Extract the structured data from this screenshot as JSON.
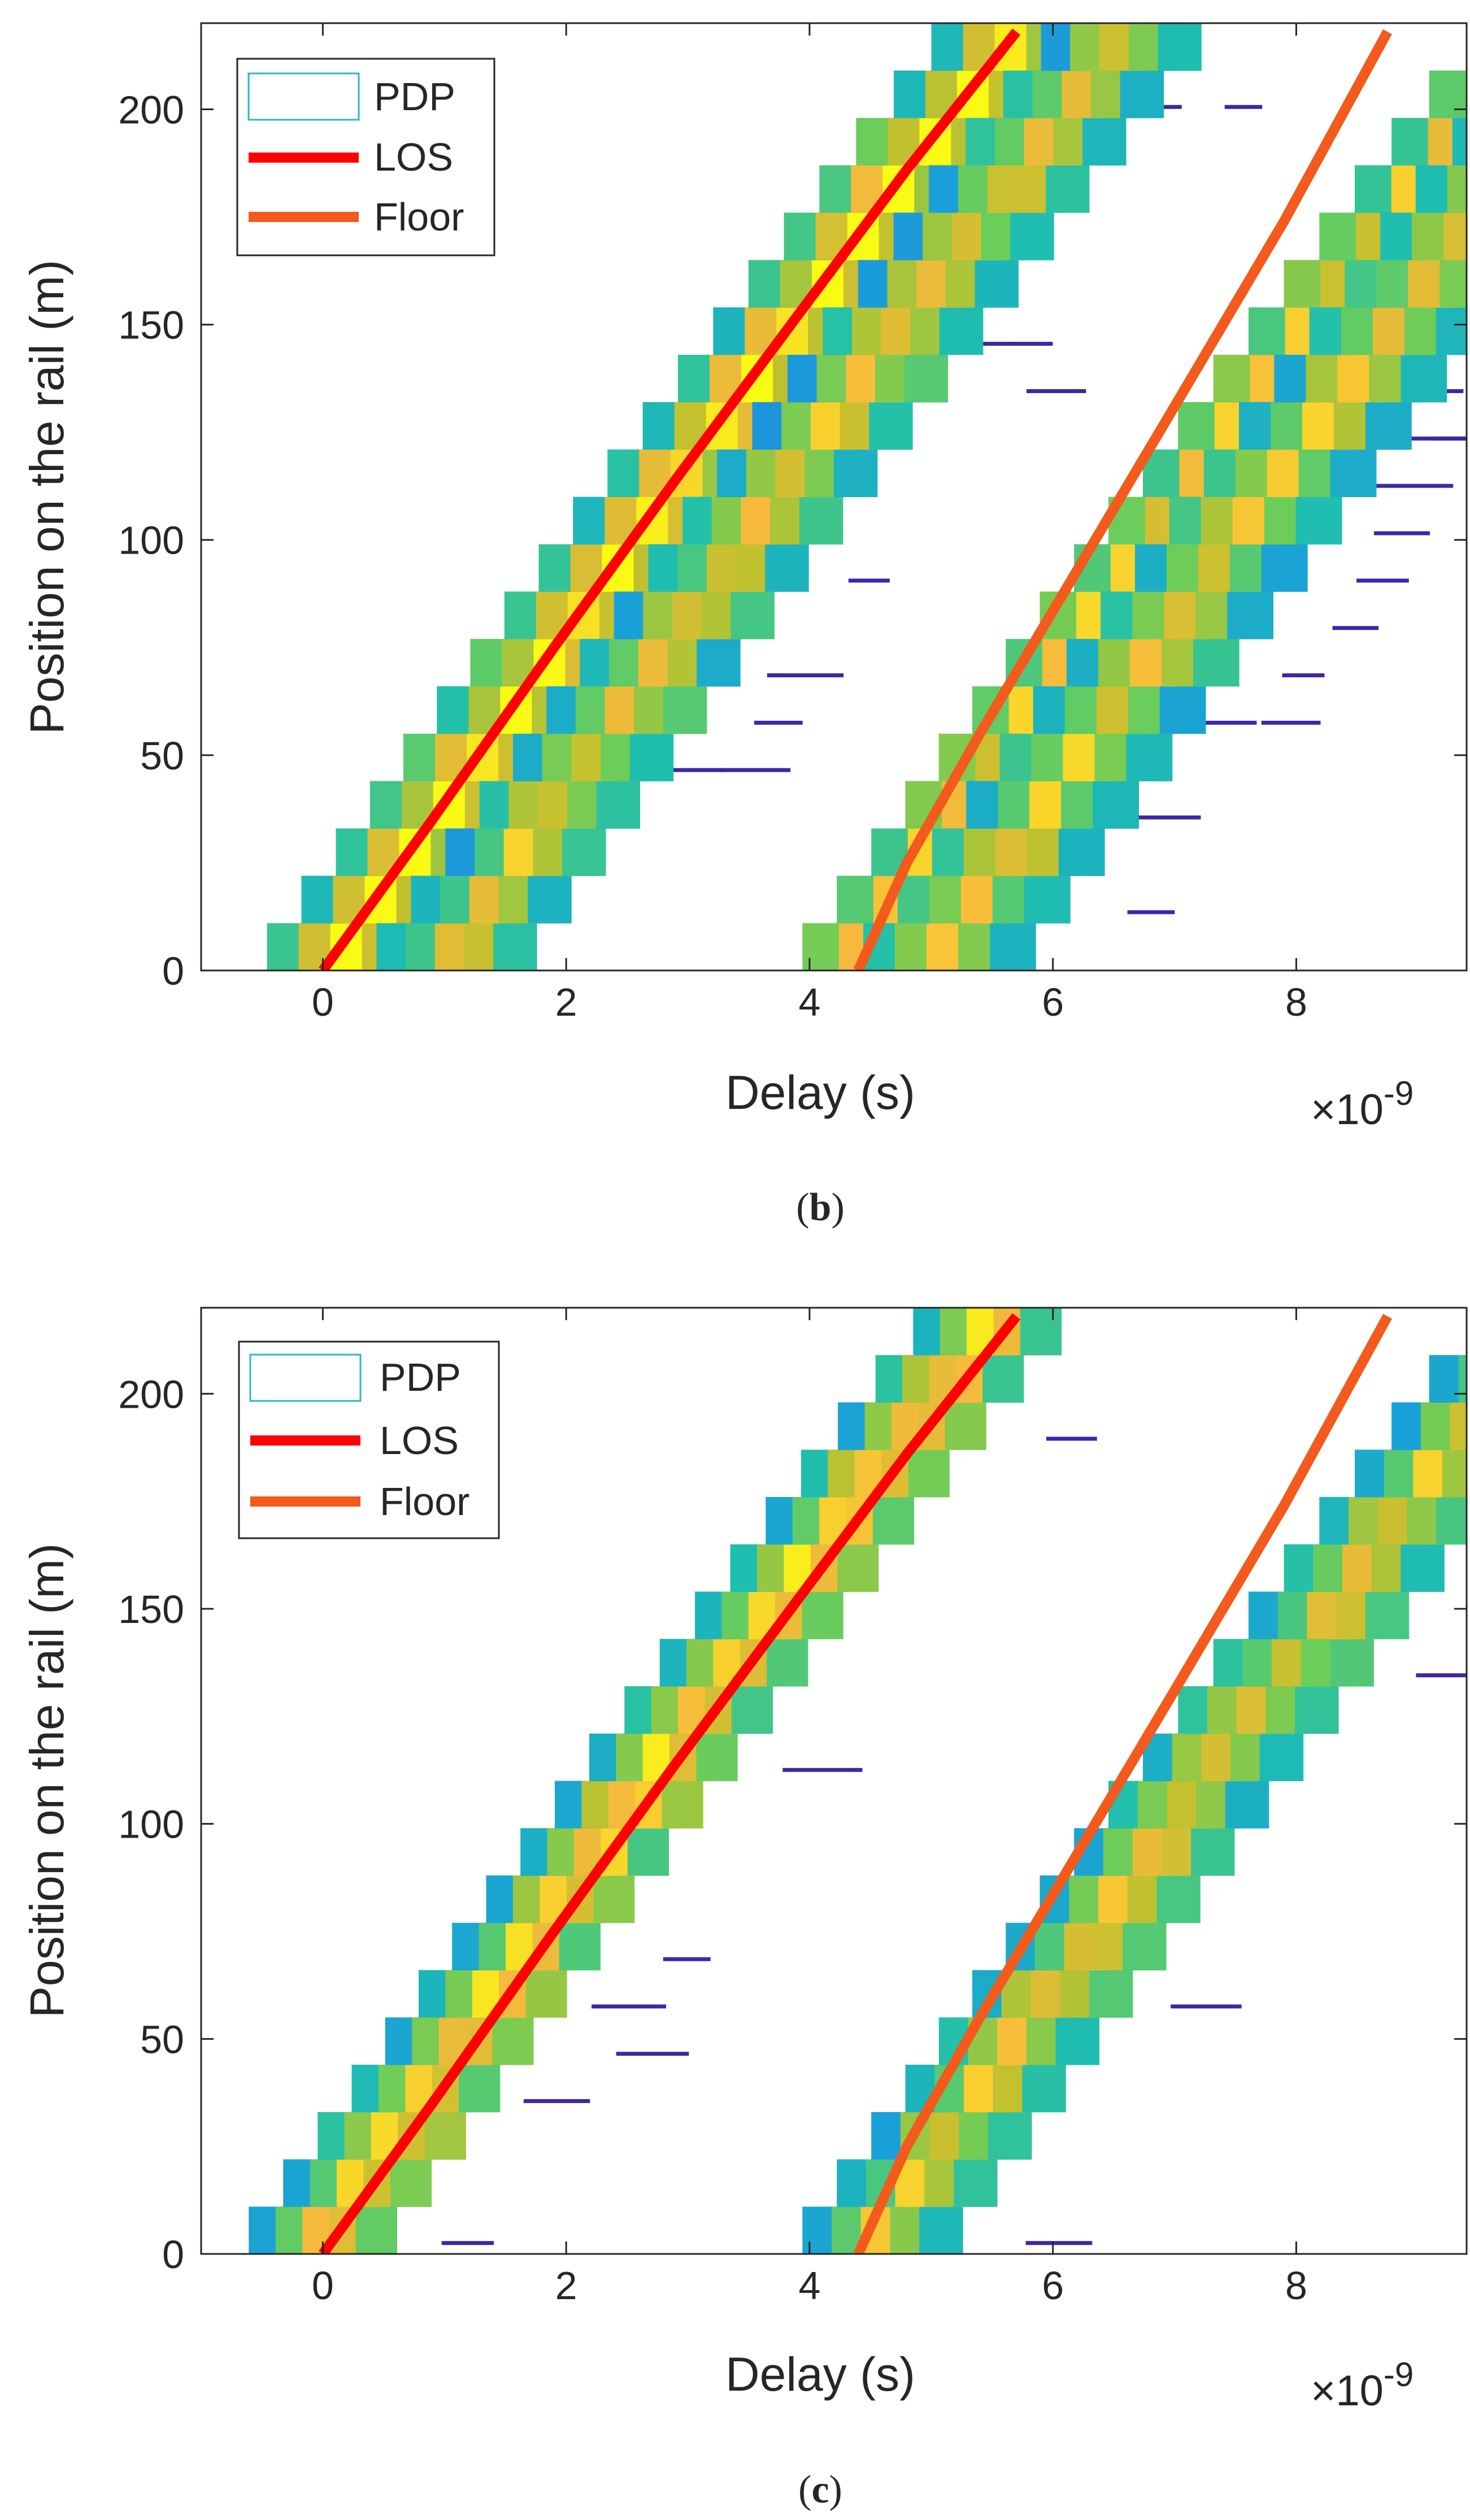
{
  "chart_data": [
    {
      "type": "heatmap",
      "panel_label": "b",
      "xlabel": "Delay (s)",
      "ylabel": "Position on the rail (m)",
      "x_exponent_label": "×10",
      "x_exponent_power": "-9",
      "xlim": [
        -1.0,
        9.4
      ],
      "ylim": [
        0,
        220
      ],
      "xticks": [
        0,
        2,
        4,
        6,
        8
      ],
      "yticks": [
        0,
        50,
        100,
        150,
        200
      ],
      "xtick_labels": [
        "0",
        "2",
        "4",
        "6",
        "8"
      ],
      "ytick_labels": [
        "0",
        "50",
        "100",
        "150",
        "200"
      ],
      "legend": {
        "location": "top-left",
        "entries": [
          "PDP",
          "LOS",
          "Floor"
        ]
      },
      "series": [
        {
          "name": "LOS",
          "color": "#ff0000",
          "x": [
            0.0,
            0.9,
            1.9,
            2.9,
            3.9,
            4.8,
            5.7
          ],
          "y": [
            0,
            35,
            75,
            114,
            152,
            186,
            218
          ]
        },
        {
          "name": "Floor",
          "color": "#f35a1c",
          "x": [
            4.4,
            4.8,
            5.4,
            6.2,
            7.0,
            7.9,
            8.75
          ],
          "y": [
            0,
            25,
            55,
            93,
            131,
            174,
            218
          ]
        }
      ],
      "pdp_bands": [
        {
          "offset": 0.0,
          "x_start": -1.0,
          "spread": 1.3
        },
        {
          "offset": 0.9,
          "x_start": -0.2,
          "spread": 1.2
        },
        {
          "offset": 4.4,
          "x_start": 3.7,
          "spread": 1.5
        },
        {
          "offset": 4.9,
          "x_start": 4.2,
          "spread": 1.3
        }
      ]
    },
    {
      "type": "heatmap",
      "panel_label": "c",
      "xlabel": "Delay (s)",
      "ylabel": "Position on the rail (m)",
      "x_exponent_label": "×10",
      "x_exponent_power": "-9",
      "xlim": [
        -1.0,
        9.4
      ],
      "ylim": [
        0,
        220
      ],
      "xticks": [
        0,
        2,
        4,
        6,
        8
      ],
      "yticks": [
        0,
        50,
        100,
        150,
        200
      ],
      "xtick_labels": [
        "0",
        "2",
        "4",
        "6",
        "8"
      ],
      "ytick_labels": [
        "0",
        "50",
        "100",
        "150",
        "200"
      ],
      "legend": {
        "location": "top-left",
        "entries": [
          "PDP",
          "LOS",
          "Floor"
        ]
      },
      "series": [
        {
          "name": "LOS",
          "color": "#ff0000",
          "x": [
            0.0,
            0.9,
            1.9,
            2.9,
            3.9,
            4.8,
            5.7
          ],
          "y": [
            0,
            35,
            75,
            114,
            152,
            186,
            218
          ]
        },
        {
          "name": "Floor",
          "color": "#f35a1c",
          "x": [
            4.4,
            4.8,
            5.4,
            6.2,
            7.0,
            7.9,
            8.75
          ],
          "y": [
            0,
            25,
            55,
            93,
            131,
            174,
            218
          ]
        }
      ],
      "pdp_bands": [
        {
          "offset": -0.15,
          "x_start": -1.0,
          "spread": 1.1
        },
        {
          "offset": 4.4,
          "x_start": 3.7,
          "spread": 1.2
        }
      ]
    }
  ],
  "colors": {
    "legend_pdp": "#2ab7c9",
    "axis": "#262626",
    "colormap": [
      "#3e26a8",
      "#2f5cf0",
      "#1aa0d8",
      "#1fbfae",
      "#6ccd5a",
      "#c2c12e",
      "#f7ba3c",
      "#f9fb14"
    ]
  }
}
